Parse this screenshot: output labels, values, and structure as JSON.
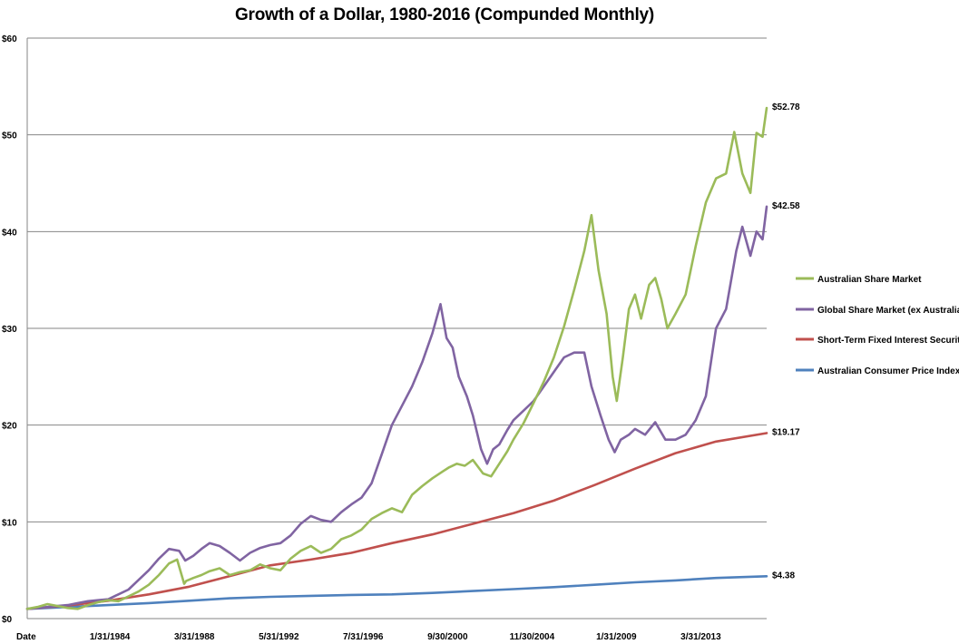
{
  "chart_data": {
    "type": "line",
    "title": "Growth of a Dollar, 1980-2016 (Compunded Monthly)",
    "xlabel": "",
    "ylabel": "",
    "x_first_tick": "Date",
    "x_ticks": [
      "Date",
      "1/31/1984",
      "3/31/1988",
      "5/31/1992",
      "7/31/1996",
      "9/30/2000",
      "11/30/2004",
      "1/31/2009",
      "3/31/2013"
    ],
    "x_tick_dates": [
      1980.0,
      1984.08,
      1988.25,
      1992.42,
      1996.58,
      2000.75,
      2004.92,
      2009.08,
      2013.25
    ],
    "xlim": [
      1980.0,
      2016.5
    ],
    "y_ticks": [
      "$0",
      "$10",
      "$20",
      "$30",
      "$40",
      "$50",
      "$60"
    ],
    "ylim": [
      0,
      60
    ],
    "grid": "horizontal",
    "legend_position": "right",
    "series": [
      {
        "name": "Australian Share Market",
        "color": "#9bbb59",
        "end_label": "$52.78",
        "x": [
          1980.0,
          1980.5,
          1981.0,
          1981.5,
          1982.0,
          1982.5,
          1983.0,
          1983.5,
          1984.0,
          1984.5,
          1985.0,
          1985.5,
          1986.0,
          1986.5,
          1987.0,
          1987.4,
          1987.75,
          1987.85,
          1988.2,
          1988.6,
          1989.0,
          1989.5,
          1990.0,
          1990.5,
          1991.0,
          1991.5,
          1992.0,
          1992.5,
          1993.0,
          1993.5,
          1994.0,
          1994.5,
          1995.0,
          1995.5,
          1996.0,
          1996.5,
          1997.0,
          1997.5,
          1998.0,
          1998.5,
          1999.0,
          1999.5,
          2000.0,
          2000.5,
          2000.8,
          2001.2,
          2001.6,
          2002.0,
          2002.5,
          2002.9,
          2003.3,
          2003.7,
          2004.0,
          2004.5,
          2005.0,
          2005.5,
          2006.0,
          2006.5,
          2007.0,
          2007.5,
          2007.85,
          2008.2,
          2008.6,
          2008.9,
          2009.1,
          2009.4,
          2009.7,
          2010.0,
          2010.3,
          2010.7,
          2011.0,
          2011.3,
          2011.6,
          2012.0,
          2012.5,
          2013.0,
          2013.5,
          2014.0,
          2014.5,
          2014.9,
          2015.3,
          2015.7,
          2016.0,
          2016.3,
          2016.5
        ],
        "y": [
          1.0,
          1.2,
          1.5,
          1.3,
          1.1,
          1.0,
          1.4,
          1.7,
          1.9,
          1.8,
          2.3,
          2.8,
          3.5,
          4.5,
          5.7,
          6.1,
          3.6,
          3.9,
          4.2,
          4.5,
          4.9,
          5.2,
          4.5,
          4.8,
          5.0,
          5.6,
          5.2,
          5.0,
          6.2,
          7.0,
          7.5,
          6.8,
          7.2,
          8.2,
          8.6,
          9.2,
          10.3,
          10.9,
          11.4,
          11.0,
          12.8,
          13.7,
          14.5,
          15.2,
          15.6,
          16.0,
          15.8,
          16.4,
          15.0,
          14.7,
          16.0,
          17.3,
          18.5,
          20.2,
          22.3,
          24.5,
          27.0,
          30.2,
          34.0,
          38.0,
          41.7,
          36.0,
          31.5,
          25.0,
          22.5,
          27.0,
          32.0,
          33.5,
          31.0,
          34.5,
          35.2,
          33.0,
          30.0,
          31.5,
          33.5,
          38.5,
          43.0,
          45.5,
          46.0,
          50.3,
          46.0,
          44.0,
          50.2,
          49.8,
          52.78
        ]
      },
      {
        "name": "Global Share Market (ex Australia)",
        "color": "#8064a2",
        "end_label": "$42.58",
        "x": [
          1980.0,
          1980.5,
          1981.0,
          1981.5,
          1982.0,
          1982.5,
          1983.0,
          1983.5,
          1984.0,
          1984.5,
          1985.0,
          1985.5,
          1986.0,
          1986.5,
          1987.0,
          1987.5,
          1987.8,
          1988.2,
          1988.6,
          1989.0,
          1989.5,
          1990.0,
          1990.5,
          1991.0,
          1991.5,
          1992.0,
          1992.5,
          1993.0,
          1993.5,
          1994.0,
          1994.5,
          1995.0,
          1995.5,
          1996.0,
          1996.5,
          1997.0,
          1997.5,
          1998.0,
          1998.5,
          1999.0,
          1999.5,
          2000.0,
          2000.4,
          2000.7,
          2001.0,
          2001.3,
          2001.7,
          2002.0,
          2002.4,
          2002.7,
          2003.0,
          2003.3,
          2003.7,
          2004.0,
          2004.5,
          2005.0,
          2005.5,
          2006.0,
          2006.5,
          2007.0,
          2007.5,
          2007.85,
          2008.3,
          2008.7,
          2009.0,
          2009.3,
          2009.7,
          2010.0,
          2010.5,
          2011.0,
          2011.5,
          2012.0,
          2012.5,
          2013.0,
          2013.5,
          2014.0,
          2014.5,
          2015.0,
          2015.3,
          2015.7,
          2016.0,
          2016.3,
          2016.5
        ],
        "y": [
          1.0,
          1.1,
          1.2,
          1.3,
          1.4,
          1.6,
          1.8,
          1.9,
          2.0,
          2.5,
          3.0,
          4.0,
          5.0,
          6.2,
          7.2,
          7.0,
          6.0,
          6.5,
          7.2,
          7.8,
          7.5,
          6.8,
          6.0,
          6.8,
          7.3,
          7.6,
          7.8,
          8.6,
          9.8,
          10.6,
          10.2,
          10.0,
          11.0,
          11.8,
          12.5,
          14.0,
          17.0,
          20.0,
          22.0,
          24.0,
          26.5,
          29.5,
          32.5,
          29.0,
          28.0,
          25.0,
          23.0,
          21.0,
          17.5,
          16.0,
          17.5,
          18.0,
          19.5,
          20.5,
          21.5,
          22.5,
          24.0,
          25.5,
          27.0,
          27.5,
          27.5,
          24.0,
          21.0,
          18.5,
          17.2,
          18.5,
          19.0,
          19.6,
          19.0,
          20.3,
          18.5,
          18.5,
          19.0,
          20.5,
          23.0,
          30.0,
          32.0,
          38.0,
          40.5,
          37.5,
          40.0,
          39.2,
          42.58
        ]
      },
      {
        "name": "Short-Term Fixed Interest Securities",
        "color": "#c0504d",
        "end_label": "$19.17",
        "x": [
          1980.0,
          1982.0,
          1984.0,
          1986.0,
          1988.0,
          1990.0,
          1992.0,
          1994.0,
          1996.0,
          1998.0,
          2000.0,
          2002.0,
          2004.0,
          2006.0,
          2008.0,
          2010.0,
          2012.0,
          2014.0,
          2016.5
        ],
        "y": [
          1.0,
          1.35,
          1.85,
          2.5,
          3.3,
          4.4,
          5.5,
          6.1,
          6.8,
          7.8,
          8.7,
          9.8,
          10.9,
          12.2,
          13.8,
          15.5,
          17.1,
          18.3,
          19.17
        ]
      },
      {
        "name": "Australian Consumer Price Index",
        "color": "#4f81bd",
        "end_label": "$4.38",
        "x": [
          1980.0,
          1982.0,
          1984.0,
          1986.0,
          1988.0,
          1990.0,
          1992.0,
          1994.0,
          1996.0,
          1998.0,
          2000.0,
          2002.0,
          2004.0,
          2006.0,
          2008.0,
          2010.0,
          2012.0,
          2014.0,
          2016.5
        ],
        "y": [
          1.0,
          1.2,
          1.4,
          1.6,
          1.85,
          2.1,
          2.25,
          2.35,
          2.45,
          2.5,
          2.65,
          2.85,
          3.05,
          3.25,
          3.5,
          3.75,
          3.95,
          4.2,
          4.38
        ]
      }
    ]
  }
}
